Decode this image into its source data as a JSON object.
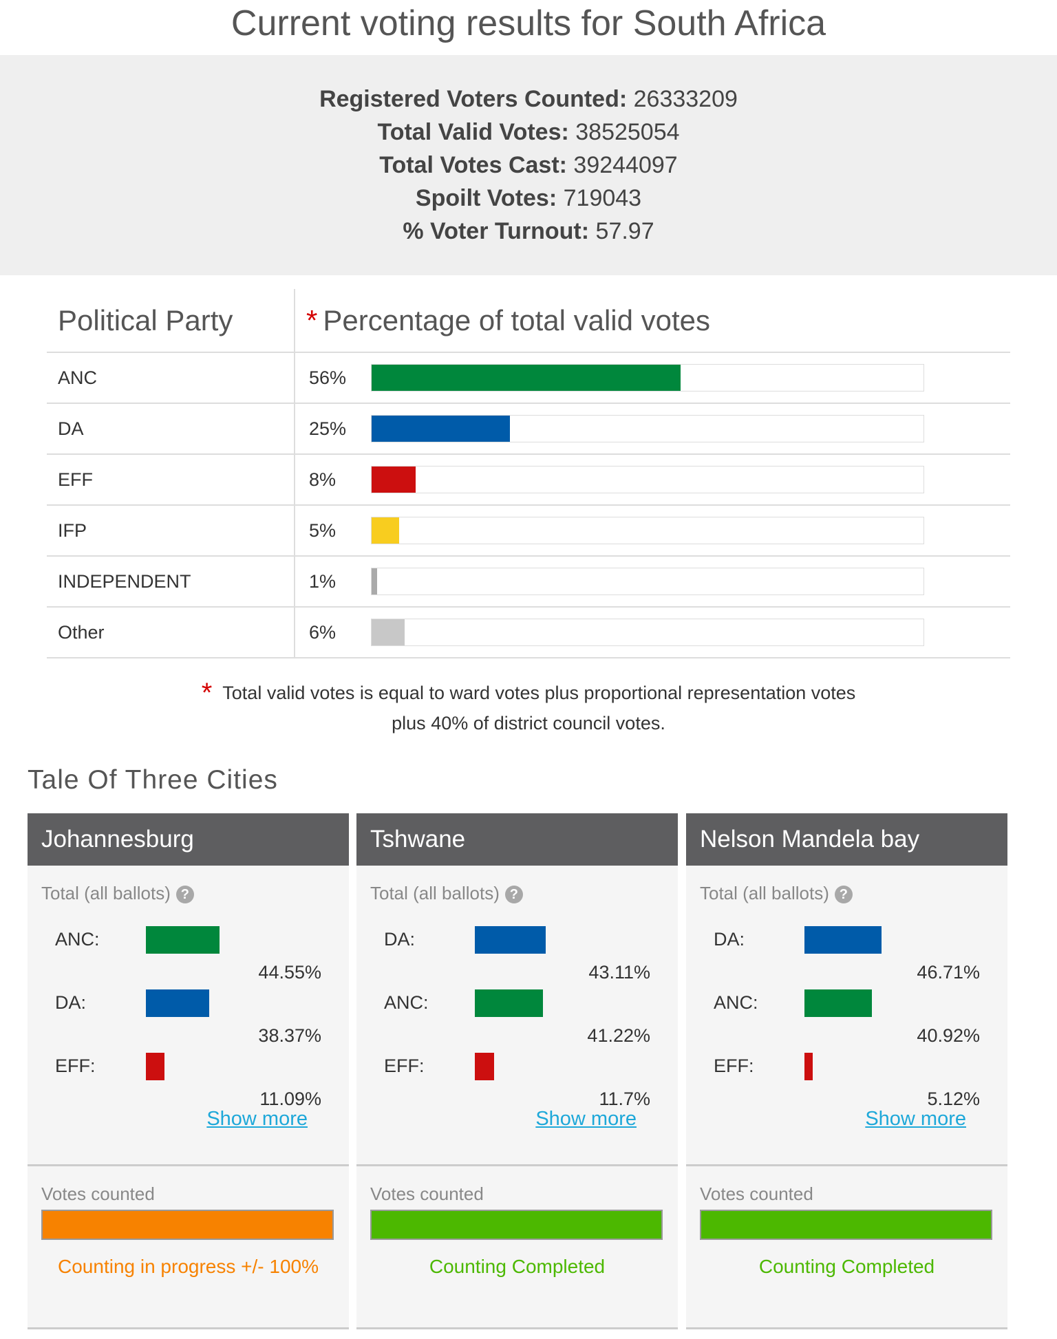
{
  "page": {
    "title": "Current voting results for South Africa"
  },
  "summary": [
    {
      "label": "Registered Voters Counted:",
      "value": "26333209"
    },
    {
      "label": "Total Valid Votes:",
      "value": "38525054"
    },
    {
      "label": "Total Votes Cast:",
      "value": "39244097"
    },
    {
      "label": "Spoilt Votes:",
      "value": "719043"
    },
    {
      "label": "% Voter Turnout:",
      "value": "57.97"
    }
  ],
  "results_table": {
    "header_party": "Political Party",
    "header_pct": "Percentage of total valid votes",
    "asterisk": "*",
    "rows": [
      {
        "party": "ANC",
        "pct_label": "56%",
        "percent": 56,
        "color": "#00873c"
      },
      {
        "party": "DA",
        "pct_label": "25%",
        "percent": 25,
        "color": "#005ba9"
      },
      {
        "party": "EFF",
        "pct_label": "8%",
        "percent": 8,
        "color": "#cc0f0f"
      },
      {
        "party": "IFP",
        "pct_label": "5%",
        "percent": 5,
        "color": "#f8cd1f"
      },
      {
        "party": "INDEPENDENT",
        "pct_label": "1%",
        "percent": 1,
        "color": "#aaaaaa"
      },
      {
        "party": "Other",
        "pct_label": "6%",
        "percent": 6,
        "color": "#c8c8c8"
      }
    ]
  },
  "footnote": {
    "asterisk": "*",
    "line1": "Total valid votes is equal to ward votes plus proportional representation votes",
    "line2": "plus 40% of district council votes."
  },
  "cities_section": {
    "title": "Tale Of Three Cities",
    "subtitle": "Total (all ballots)",
    "help_icon": "?",
    "votes_counted_label": "Votes counted",
    "show_more_label": "Show more",
    "cities": [
      {
        "name": "Johannesburg",
        "parties": [
          {
            "name": "ANC:",
            "value": "44.55%",
            "percent": 44.55,
            "color": "#00873c"
          },
          {
            "name": "DA:",
            "value": "38.37%",
            "percent": 38.37,
            "color": "#005ba9"
          },
          {
            "name": "EFF:",
            "value": "11.09%",
            "percent": 11.09,
            "color": "#cc0f0f"
          }
        ],
        "progress_percent": 100,
        "progress_color": "#f78200",
        "status": "Counting in progress +/- 100%",
        "status_color": "#f78200"
      },
      {
        "name": "Tshwane",
        "parties": [
          {
            "name": "DA:",
            "value": "43.11%",
            "percent": 43.11,
            "color": "#005ba9"
          },
          {
            "name": "ANC:",
            "value": "41.22%",
            "percent": 41.22,
            "color": "#00873c"
          },
          {
            "name": "EFF:",
            "value": "11.7%",
            "percent": 11.7,
            "color": "#cc0f0f"
          }
        ],
        "progress_percent": 100,
        "progress_color": "#4cb800",
        "status": "Counting Completed",
        "status_color": "#4cb800"
      },
      {
        "name": "Nelson Mandela bay",
        "parties": [
          {
            "name": "DA:",
            "value": "46.71%",
            "percent": 46.71,
            "color": "#005ba9"
          },
          {
            "name": "ANC:",
            "value": "40.92%",
            "percent": 40.92,
            "color": "#00873c"
          },
          {
            "name": "EFF:",
            "value": "5.12%",
            "percent": 5.12,
            "color": "#cc0f0f"
          }
        ],
        "progress_percent": 100,
        "progress_color": "#4cb800",
        "status": "Counting Completed",
        "status_color": "#4cb800"
      }
    ]
  }
}
